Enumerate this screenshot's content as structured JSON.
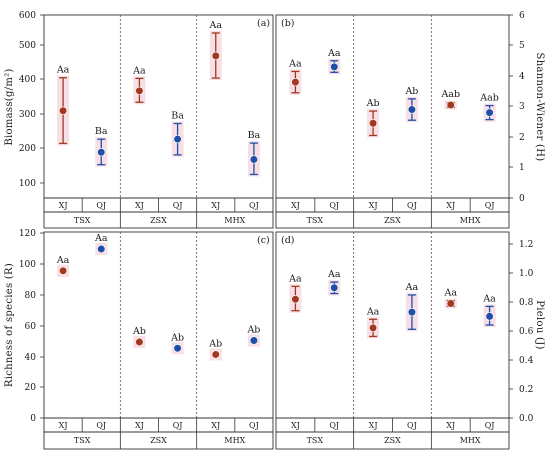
{
  "palette": {
    "xj": "#a0391f",
    "qj": "#1f4fa8",
    "halo": "#f2c4d0",
    "axis": "#333333"
  },
  "panels": [
    {
      "id": "a",
      "letter": "(a)",
      "axis_side": "left",
      "ylabel": "Biomass(g/m²)",
      "yticks": [
        "100",
        "200",
        "300",
        "400",
        "500",
        "600"
      ]
    },
    {
      "id": "b",
      "letter": "(b)",
      "axis_side": "right",
      "ylabel": "Shannon-Wiener (H)",
      "yticks": [
        "0",
        "1",
        "2",
        "3",
        "4",
        "5",
        "6"
      ]
    },
    {
      "id": "c",
      "letter": "(c)",
      "axis_side": "left",
      "ylabel": "Richness of species (R)",
      "yticks": [
        "0",
        "20",
        "40",
        "60",
        "80",
        "100",
        "120"
      ]
    },
    {
      "id": "d",
      "letter": "(d)",
      "axis_side": "right",
      "ylabel": "Pielou (J)",
      "yticks": [
        "0.0",
        "0.2",
        "0.4",
        "0.6",
        "0.8",
        "1.0",
        "1.2"
      ]
    }
  ],
  "chart_data": [
    {
      "type": "scatter",
      "panel": "a",
      "ylim": [
        40,
        600
      ],
      "ylabel": "Biomass(g/m²)",
      "sites": [
        "TSX",
        "ZSX",
        "MHX"
      ],
      "groups": [
        "XJ",
        "QJ"
      ],
      "points": [
        {
          "site": "TSX",
          "group": "XJ",
          "mean": 307,
          "low": 207,
          "high": 408,
          "label": "Aa"
        },
        {
          "site": "TSX",
          "group": "QJ",
          "mean": 180,
          "low": 142,
          "high": 220,
          "label": "Ba"
        },
        {
          "site": "ZSX",
          "group": "XJ",
          "mean": 368,
          "low": 333,
          "high": 406,
          "label": "Aa"
        },
        {
          "site": "ZSX",
          "group": "QJ",
          "mean": 220,
          "low": 172,
          "high": 268,
          "label": "Ba"
        },
        {
          "site": "MHX",
          "group": "XJ",
          "mean": 475,
          "low": 407,
          "high": 545,
          "label": "Aa"
        },
        {
          "site": "MHX",
          "group": "QJ",
          "mean": 158,
          "low": 112,
          "high": 208,
          "label": "Ba"
        }
      ]
    },
    {
      "type": "scatter",
      "panel": "b",
      "ylim": [
        0,
        6
      ],
      "ylabel": "Shannon-Wiener (H)",
      "sites": [
        "TSX",
        "ZSX",
        "MHX"
      ],
      "groups": [
        "XJ",
        "QJ"
      ],
      "points": [
        {
          "site": "TSX",
          "group": "XJ",
          "mean": 3.8,
          "low": 3.45,
          "high": 4.15,
          "label": "Aa"
        },
        {
          "site": "TSX",
          "group": "QJ",
          "mean": 4.3,
          "low": 4.12,
          "high": 4.5,
          "label": "Aa"
        },
        {
          "site": "ZSX",
          "group": "XJ",
          "mean": 2.45,
          "low": 2.05,
          "high": 2.85,
          "label": "Ab"
        },
        {
          "site": "ZSX",
          "group": "QJ",
          "mean": 2.9,
          "low": 2.55,
          "high": 3.25,
          "label": "Ab"
        },
        {
          "site": "MHX",
          "group": "XJ",
          "mean": 3.05,
          "low": 2.97,
          "high": 3.12,
          "label": "Aab"
        },
        {
          "site": "MHX",
          "group": "QJ",
          "mean": 2.8,
          "low": 2.57,
          "high": 3.03,
          "label": "Aab"
        }
      ]
    },
    {
      "type": "scatter",
      "panel": "c",
      "ylim": [
        0,
        120
      ],
      "ylabel": "Richness of species (R)",
      "sites": [
        "TSX",
        "ZSX",
        "MHX"
      ],
      "groups": [
        "XJ",
        "QJ"
      ],
      "points": [
        {
          "site": "TSX",
          "group": "XJ",
          "mean": 95,
          "low": 95,
          "high": 95,
          "label": "Aa"
        },
        {
          "site": "TSX",
          "group": "QJ",
          "mean": 109,
          "low": 109,
          "high": 109,
          "label": "Aa"
        },
        {
          "site": "ZSX",
          "group": "XJ",
          "mean": 49,
          "low": 49,
          "high": 49,
          "label": "Ab"
        },
        {
          "site": "ZSX",
          "group": "QJ",
          "mean": 45,
          "low": 45,
          "high": 45,
          "label": "Ab"
        },
        {
          "site": "MHX",
          "group": "XJ",
          "mean": 41,
          "low": 41,
          "high": 41,
          "label": "Ab"
        },
        {
          "site": "MHX",
          "group": "QJ",
          "mean": 50,
          "low": 50,
          "high": 50,
          "label": "Ab"
        }
      ]
    },
    {
      "type": "scatter",
      "panel": "d",
      "ylim": [
        0,
        1.3
      ],
      "ylabel": "Pielou (J)",
      "sites": [
        "TSX",
        "ZSX",
        "MHX"
      ],
      "groups": [
        "XJ",
        "QJ"
      ],
      "points": [
        {
          "site": "TSX",
          "group": "XJ",
          "mean": 0.83,
          "low": 0.75,
          "high": 0.92,
          "label": "Aa"
        },
        {
          "site": "TSX",
          "group": "QJ",
          "mean": 0.91,
          "low": 0.87,
          "high": 0.95,
          "label": "Aa"
        },
        {
          "site": "ZSX",
          "group": "XJ",
          "mean": 0.63,
          "low": 0.57,
          "high": 0.69,
          "label": "Aa"
        },
        {
          "site": "ZSX",
          "group": "QJ",
          "mean": 0.74,
          "low": 0.62,
          "high": 0.86,
          "label": "Aa"
        },
        {
          "site": "MHX",
          "group": "XJ",
          "mean": 0.8,
          "low": 0.78,
          "high": 0.82,
          "label": "Aa"
        },
        {
          "site": "MHX",
          "group": "QJ",
          "mean": 0.71,
          "low": 0.65,
          "high": 0.78,
          "label": "Aa"
        }
      ]
    }
  ]
}
